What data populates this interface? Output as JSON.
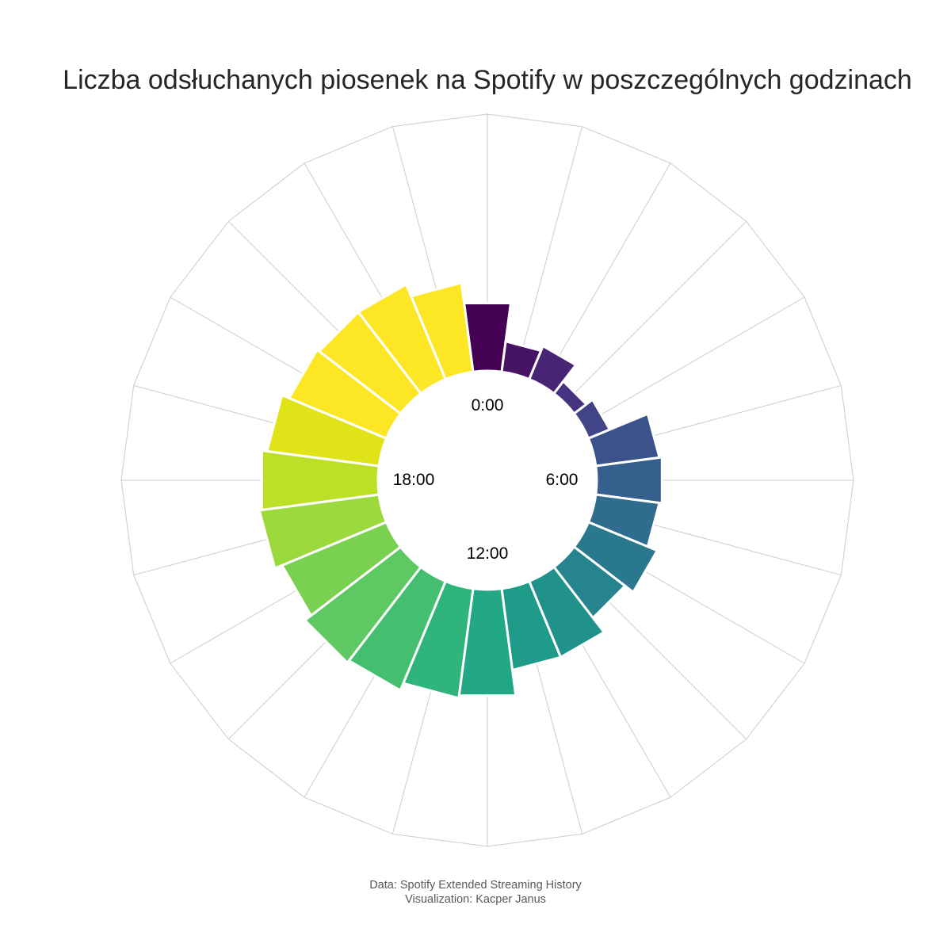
{
  "title": "Liczba odsłuchanych piosenek na Spotify w poszczególnych godzinach",
  "caption": {
    "line1": "Data: Spotify Extended Streaming History",
    "line2": "Visualization: Kacper Janus"
  },
  "chart_data": {
    "type": "bar",
    "subtype": "polar",
    "hours": [
      0,
      1,
      2,
      3,
      4,
      5,
      6,
      7,
      8,
      9,
      10,
      11,
      12,
      13,
      14,
      15,
      16,
      17,
      18,
      19,
      20,
      21,
      22,
      23
    ],
    "values": [
      27,
      12,
      14,
      6,
      9,
      25,
      26,
      25,
      29,
      25,
      32,
      32,
      42,
      43,
      46,
      47,
      44,
      47,
      46,
      44,
      41,
      40,
      40,
      35
    ],
    "range": [
      0,
      100
    ],
    "angle_labels": [
      "0:00",
      "6:00",
      "12:00",
      "18:00"
    ],
    "direction": "clockwise",
    "start": "top",
    "colormap": "viridis",
    "colors": [
      "#440154",
      "#471365",
      "#482475",
      "#463480",
      "#414487",
      "#3b528b",
      "#355f8d",
      "#2f6c8e",
      "#2a788e",
      "#25848e",
      "#21918c",
      "#1e9c89",
      "#22a884",
      "#2fb47c",
      "#44bf70",
      "#5ec962",
      "#7ad151",
      "#9bd93c",
      "#bddf26",
      "#dfe318",
      "#fde725",
      "#fde725",
      "#fde725",
      "#fde725"
    ],
    "grid": true,
    "grid_color": "#cccccc"
  }
}
